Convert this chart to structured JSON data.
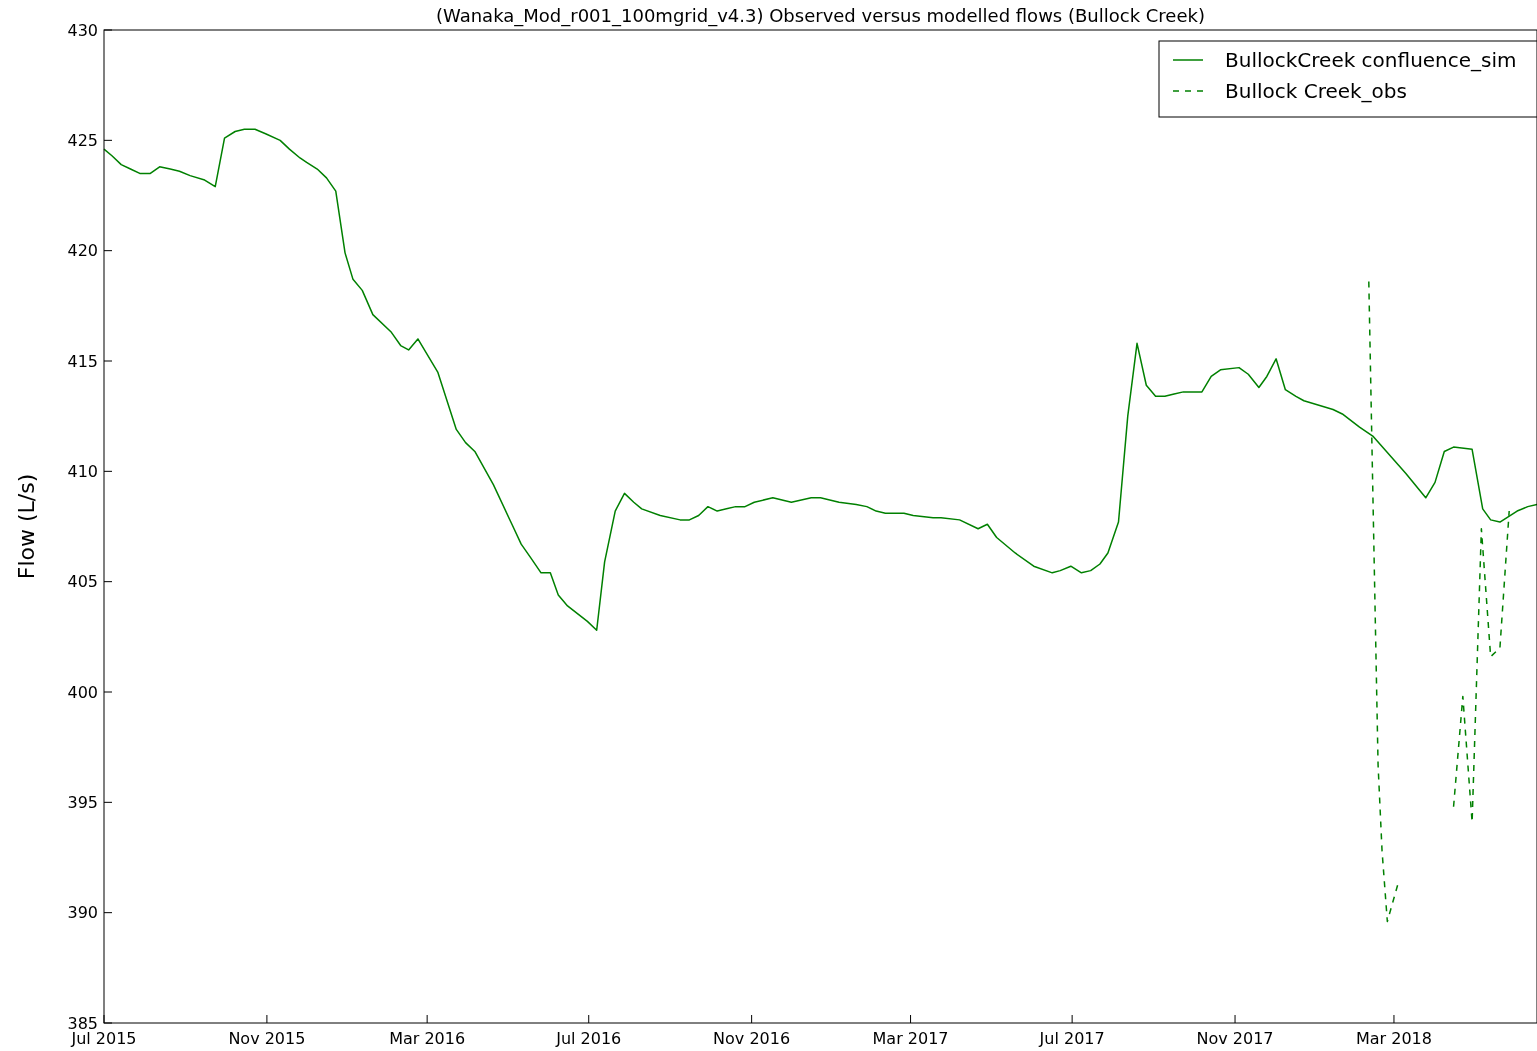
{
  "chart_data": {
    "type": "line",
    "title": "(Wanaka_Mod_r001_100mgrid_v4.3) Observed versus modelled flows (Bullock Creek)",
    "ylabel": "Flow (L/s)",
    "xlim": [
      "2015-07-01",
      "2018-06-17"
    ],
    "ylim": [
      385,
      430
    ],
    "yticks": [
      385,
      390,
      395,
      400,
      405,
      410,
      415,
      420,
      425,
      430
    ],
    "xticks": [
      {
        "value": "2015-07-01",
        "label": "Jul 2015"
      },
      {
        "value": "2015-11-01",
        "label": "Nov 2015"
      },
      {
        "value": "2016-03-01",
        "label": "Mar 2016"
      },
      {
        "value": "2016-07-01",
        "label": "Jul 2016"
      },
      {
        "value": "2016-11-01",
        "label": "Nov 2016"
      },
      {
        "value": "2017-03-01",
        "label": "Mar 2017"
      },
      {
        "value": "2017-07-01",
        "label": "Jul 2017"
      },
      {
        "value": "2017-11-01",
        "label": "Nov 2017"
      },
      {
        "value": "2018-03-01",
        "label": "Mar 2018"
      }
    ],
    "legend": "top right",
    "grid": false,
    "series": [
      {
        "name": "BullockCreek confluence_sim",
        "color": "#008000",
        "line_style": "solid",
        "x": [
          "2015-07-01",
          "2015-07-07",
          "2015-07-14",
          "2015-07-21",
          "2015-07-28",
          "2015-08-05",
          "2015-08-12",
          "2015-08-20",
          "2015-08-27",
          "2015-09-04",
          "2015-09-15",
          "2015-09-23",
          "2015-09-30",
          "2015-10-08",
          "2015-10-15",
          "2015-10-23",
          "2015-10-31",
          "2015-11-11",
          "2015-11-18",
          "2015-11-26",
          "2015-12-01",
          "2015-12-09",
          "2015-12-16",
          "2015-12-23",
          "2015-12-30",
          "2016-01-05",
          "2016-01-12",
          "2016-01-20",
          "2016-02-03",
          "2016-02-10",
          "2016-02-16",
          "2016-02-23",
          "2016-03-09",
          "2016-03-23",
          "2016-03-30",
          "2016-04-06",
          "2016-04-20",
          "2016-05-04",
          "2016-05-11",
          "2016-05-18",
          "2016-05-26",
          "2016-06-02",
          "2016-06-08",
          "2016-06-15",
          "2016-06-30",
          "2016-07-07",
          "2016-07-13",
          "2016-07-21",
          "2016-07-28",
          "2016-08-04",
          "2016-08-10",
          "2016-08-24",
          "2016-09-08",
          "2016-09-15",
          "2016-09-22",
          "2016-09-29",
          "2016-10-06",
          "2016-10-13",
          "2016-10-20",
          "2016-10-27",
          "2016-11-03",
          "2016-11-17",
          "2016-12-01",
          "2016-12-16",
          "2016-12-23",
          "2016-12-30",
          "2017-01-06",
          "2017-01-19",
          "2017-01-27",
          "2017-02-03",
          "2017-02-10",
          "2017-02-24",
          "2017-03-03",
          "2017-03-18",
          "2017-03-24",
          "2017-04-07",
          "2017-04-21",
          "2017-04-28",
          "2017-05-05",
          "2017-05-19",
          "2017-06-02",
          "2017-06-16",
          "2017-06-22",
          "2017-06-30",
          "2017-07-08",
          "2017-07-15",
          "2017-07-22",
          "2017-07-28",
          "2017-08-05",
          "2017-08-12",
          "2017-08-19",
          "2017-08-26",
          "2017-09-02",
          "2017-09-09",
          "2017-09-16",
          "2017-09-23",
          "2017-09-30",
          "2017-10-07",
          "2017-10-14",
          "2017-10-21",
          "2017-11-04",
          "2017-11-11",
          "2017-11-19",
          "2017-11-25",
          "2017-12-02",
          "2017-12-09",
          "2017-12-17",
          "2017-12-23",
          "2018-01-14",
          "2018-01-21",
          "2018-02-03",
          "2018-02-13",
          "2018-03-10",
          "2018-03-25",
          "2018-04-01",
          "2018-04-08",
          "2018-04-15",
          "2018-04-29",
          "2018-05-07",
          "2018-05-13",
          "2018-05-20",
          "2018-06-02",
          "2018-06-10",
          "2018-06-17"
        ],
        "values": [
          424.6,
          424.3,
          423.9,
          423.7,
          423.5,
          423.5,
          423.8,
          423.7,
          423.6,
          423.4,
          423.2,
          422.9,
          425.1,
          425.4,
          425.5,
          425.5,
          425.3,
          425.0,
          424.6,
          424.2,
          424.0,
          423.7,
          423.3,
          422.7,
          419.9,
          418.7,
          418.2,
          417.1,
          416.3,
          415.7,
          415.5,
          416.0,
          414.5,
          411.9,
          411.3,
          410.9,
          409.4,
          407.6,
          406.7,
          406.1,
          405.4,
          405.4,
          404.4,
          403.9,
          403.2,
          402.8,
          405.9,
          408.2,
          409.0,
          408.6,
          408.3,
          408.0,
          407.8,
          407.8,
          408.0,
          408.4,
          408.2,
          408.3,
          408.4,
          408.4,
          408.6,
          408.8,
          408.6,
          408.8,
          408.8,
          408.7,
          408.6,
          408.5,
          408.4,
          408.2,
          408.1,
          408.1,
          408.0,
          407.9,
          407.9,
          407.8,
          407.4,
          407.6,
          407.0,
          406.3,
          405.7,
          405.4,
          405.5,
          405.7,
          405.4,
          405.5,
          405.8,
          406.3,
          407.7,
          412.5,
          415.8,
          413.9,
          413.4,
          413.4,
          413.5,
          413.6,
          413.6,
          413.6,
          414.3,
          414.6,
          414.7,
          414.4,
          413.8,
          414.3,
          415.1,
          413.7,
          413.4,
          413.2,
          412.8,
          412.6,
          412.0,
          411.6,
          409.9,
          408.8,
          409.5,
          410.9,
          411.1,
          411.0,
          408.3,
          407.8,
          407.7,
          408.2,
          408.4,
          408.5
        ]
      },
      {
        "name": "Bullock Creek_obs",
        "color": "#008000",
        "line_style": "dashed",
        "x": [
          "2018-02-10",
          "2018-02-17",
          "2018-02-20",
          "2018-02-24",
          "2018-03-04",
          "2018-03-20",
          "2018-04-15",
          "2018-04-22",
          "2018-04-29",
          "2018-05-06",
          "2018-05-13",
          "2018-05-20",
          "2018-05-27"
        ],
        "values": [
          418.6,
          396.7,
          392.8,
          389.6,
          391.3,
          null,
          394.8,
          399.8,
          394.1,
          407.4,
          401.6,
          402.0,
          408.2
        ]
      }
    ]
  }
}
